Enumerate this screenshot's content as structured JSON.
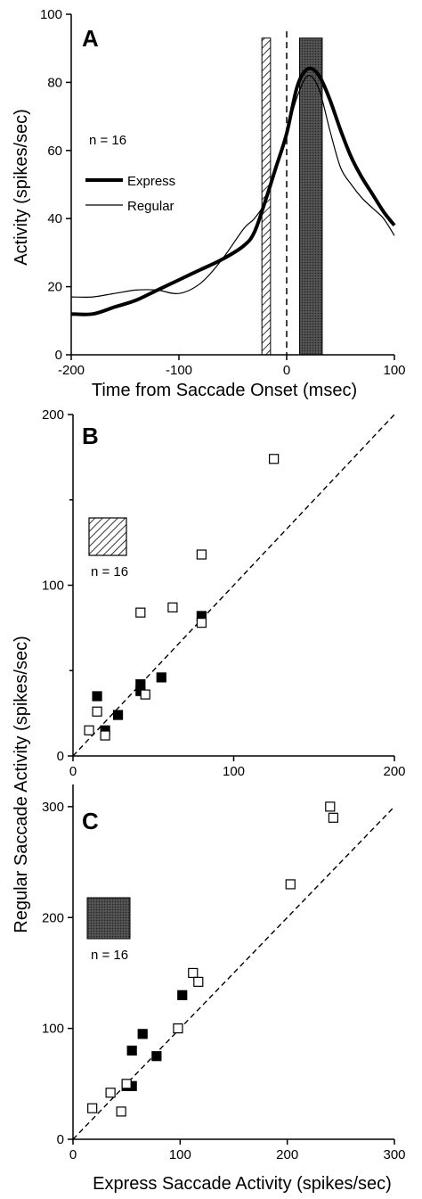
{
  "chart_data": [
    {
      "type": "line",
      "panel_label": "A",
      "xlabel": "Time from Saccade Onset (msec)",
      "ylabel": "Activity (spikes/sec)",
      "xlim": [
        -200,
        100
      ],
      "ylim": [
        0,
        100
      ],
      "xticks": [
        -200,
        -100,
        0,
        100
      ],
      "yticks": [
        0,
        20,
        40,
        60,
        80,
        100
      ],
      "annotation": "n = 16",
      "legend": "left",
      "grid": false,
      "series": [
        {
          "name": "Express",
          "style": "thick",
          "x": [
            -200,
            -180,
            -160,
            -140,
            -120,
            -100,
            -80,
            -60,
            -40,
            -30,
            -20,
            -10,
            0,
            10,
            20,
            30,
            40,
            50,
            60,
            70,
            80,
            90,
            100
          ],
          "y": [
            12,
            12,
            14,
            16,
            19,
            22,
            25,
            28,
            32,
            36,
            45,
            55,
            65,
            79,
            84,
            82,
            75,
            66,
            58,
            52,
            47,
            42,
            38
          ]
        },
        {
          "name": "Regular",
          "style": "thin",
          "x": [
            -200,
            -180,
            -160,
            -140,
            -120,
            -100,
            -80,
            -60,
            -40,
            -30,
            -20,
            -10,
            0,
            10,
            20,
            30,
            40,
            50,
            60,
            70,
            80,
            90,
            100
          ],
          "y": [
            17,
            17,
            18,
            19,
            19,
            18,
            21,
            28,
            37,
            40,
            45,
            55,
            65,
            76,
            82,
            78,
            66,
            55,
            50,
            46,
            43,
            40,
            35
          ]
        }
      ],
      "windows": [
        {
          "pattern": "hatched",
          "x_start": -23,
          "x_end": -15,
          "y_top": 93
        },
        {
          "pattern": "dark",
          "x_start": 12,
          "x_end": 33,
          "y_top": 93
        }
      ],
      "reference_line_x": 0
    },
    {
      "type": "scatter",
      "panel_label": "B",
      "window_pattern": "hatched",
      "annotation": "n = 16",
      "xlim": [
        0,
        200
      ],
      "ylim": [
        0,
        200
      ],
      "xticks": [
        0,
        100,
        200
      ],
      "yticks": [
        0,
        100,
        200
      ],
      "unity_line": true,
      "series": [
        {
          "marker": "filled-square",
          "points": [
            [
              15,
              35
            ],
            [
              20,
              15
            ],
            [
              28,
              24
            ],
            [
              42,
              42
            ],
            [
              42,
              38
            ],
            [
              55,
              46
            ],
            [
              80,
              82
            ]
          ]
        },
        {
          "marker": "open-square",
          "points": [
            [
              10,
              15
            ],
            [
              15,
              26
            ],
            [
              20,
              12
            ],
            [
              42,
              84
            ],
            [
              45,
              36
            ],
            [
              62,
              87
            ],
            [
              80,
              118
            ],
            [
              80,
              78
            ],
            [
              125,
              174
            ]
          ]
        }
      ]
    },
    {
      "type": "scatter",
      "panel_label": "C",
      "window_pattern": "dark",
      "annotation": "n = 16",
      "xlabel": "Express Saccade Activity (spikes/sec)",
      "ylabel": "Regular Saccade Activity (spikes/sec)",
      "xlim": [
        0,
        300
      ],
      "ylim": [
        0,
        320
      ],
      "xticks": [
        0,
        100,
        200,
        300
      ],
      "yticks": [
        0,
        100,
        200,
        300
      ],
      "unity_line": true,
      "series": [
        {
          "marker": "filled-square",
          "points": [
            [
              50,
              48
            ],
            [
              55,
              48
            ],
            [
              55,
              80
            ],
            [
              65,
              95
            ],
            [
              78,
              75
            ],
            [
              102,
              130
            ]
          ]
        },
        {
          "marker": "open-square",
          "points": [
            [
              18,
              28
            ],
            [
              35,
              42
            ],
            [
              45,
              25
            ],
            [
              50,
              50
            ],
            [
              98,
              100
            ],
            [
              112,
              150
            ],
            [
              117,
              142
            ],
            [
              203,
              230
            ],
            [
              240,
              300
            ],
            [
              243,
              290
            ]
          ]
        }
      ]
    }
  ]
}
